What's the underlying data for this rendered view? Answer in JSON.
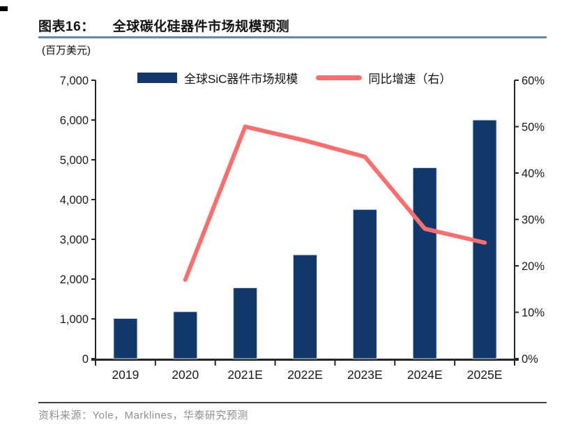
{
  "page": {
    "title_prefix": "图表16：",
    "title": "全球碳化硅器件市场规模预测",
    "source_text": "资料来源：Yole，Marklines，华泰研究预测"
  },
  "legend": {
    "bar_label": "全球SiC器件市场规模",
    "line_label": "同比增速（右）"
  },
  "colors": {
    "bar": "#12386B",
    "bar_edge": "#CFDBEC",
    "line": "#FA6E6E",
    "axis": "#262626",
    "tick_text": "#1A1A1A",
    "title_underline": "#6288B4",
    "source_divider": "#3F3F3F",
    "source_text": "#8F8F8F"
  },
  "chart_data": {
    "type": "bar",
    "subtype": "bar-plus-line-dual-axis",
    "title": "全球碳化硅器件市场规模预测",
    "categories": [
      "2019",
      "2020",
      "2021E",
      "2022E",
      "2023E",
      "2024E",
      "2025E"
    ],
    "series": [
      {
        "name": "全球SiC器件市场规模",
        "type": "bar",
        "axis": "left",
        "unit": "百万美元",
        "values": [
          1010,
          1180,
          1780,
          2610,
          3750,
          4800,
          6000
        ]
      },
      {
        "name": "同比增速（右）",
        "type": "line",
        "axis": "right",
        "unit": "%",
        "values": [
          null,
          17,
          50,
          47,
          43.5,
          28,
          25
        ]
      }
    ],
    "left_axis": {
      "title": "(百万美元)",
      "min": 0,
      "max": 7000,
      "step": 1000,
      "tick_labels": [
        "0",
        "1,000",
        "2,000",
        "3,000",
        "4,000",
        "5,000",
        "6,000",
        "7,000"
      ]
    },
    "right_axis": {
      "min": 0,
      "max": 60,
      "step": 10,
      "tick_labels": [
        "0%",
        "10%",
        "20%",
        "30%",
        "40%",
        "50%",
        "60%"
      ]
    },
    "grid": false,
    "legend_position": "top"
  }
}
